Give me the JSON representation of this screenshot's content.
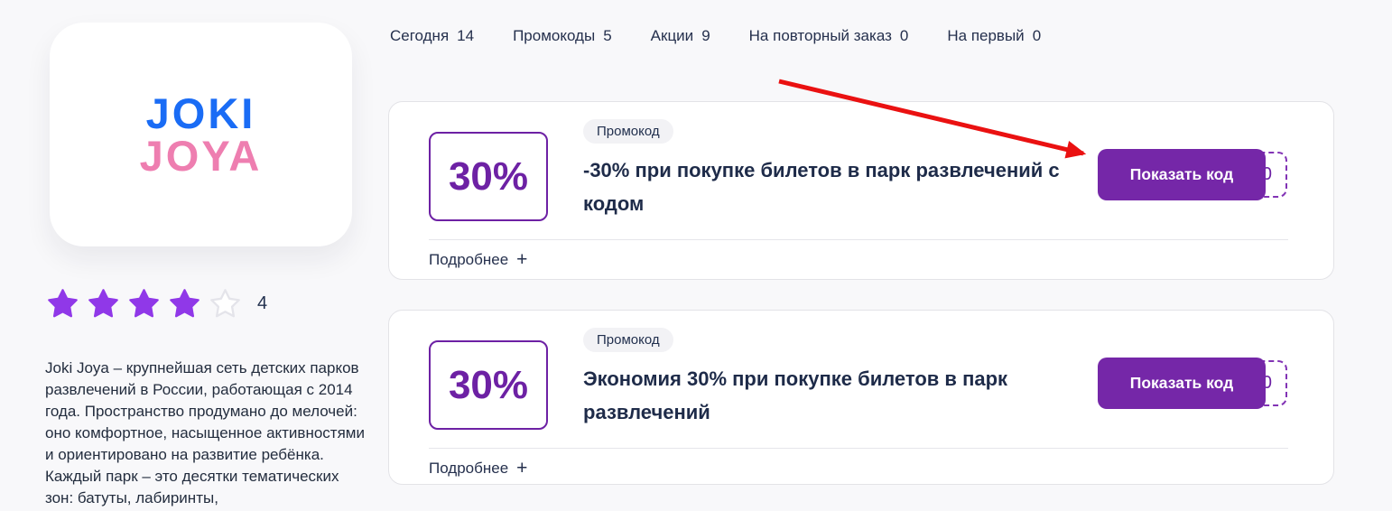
{
  "brand": {
    "logo_line1": "JOKI",
    "logo_line2": "JOYA",
    "logo_color1": "#1a6cf5",
    "logo_color2": "#ee7eb0"
  },
  "rating": {
    "filled": 4,
    "total": 5,
    "value": "4",
    "star_color": "#9038e8",
    "empty_color": "#e4e4ea"
  },
  "description": "Joki Joya – крупнейшая сеть детских парков развлечений в России, работающая с 2014 года. Пространство продумано до мелочей: оно комфортное, насыщенное активностями и ориентировано на развитие ребёнка. Каждый парк – это десятки тематических зон: батуты, лабиринты,",
  "tabs": [
    {
      "label": "Сегодня",
      "count": "14"
    },
    {
      "label": "Промокоды",
      "count": "5"
    },
    {
      "label": "Акции",
      "count": "9"
    },
    {
      "label": "На повторный заказ",
      "count": "0"
    },
    {
      "label": "На первый",
      "count": "0"
    }
  ],
  "cards": [
    {
      "discount": "30%",
      "badge": "Промокод",
      "title": "-30% при покупке билетов в парк развлечений с кодом",
      "button_label": "Показать код",
      "code_visible": "0",
      "details_label": "Подробнее",
      "details_icon": "+"
    },
    {
      "discount": "30%",
      "badge": "Промокод",
      "title": "Экономия 30% при покупке билетов в парк развлечений",
      "button_label": "Показать код",
      "code_visible": "0",
      "details_label": "Подробнее",
      "details_icon": "+"
    }
  ],
  "colors": {
    "accent_purple": "#6d21a4",
    "button_purple": "#7527a8",
    "dashed_border": "#8233b5",
    "arrow_red": "#ea1111",
    "text_navy": "#22304e"
  }
}
